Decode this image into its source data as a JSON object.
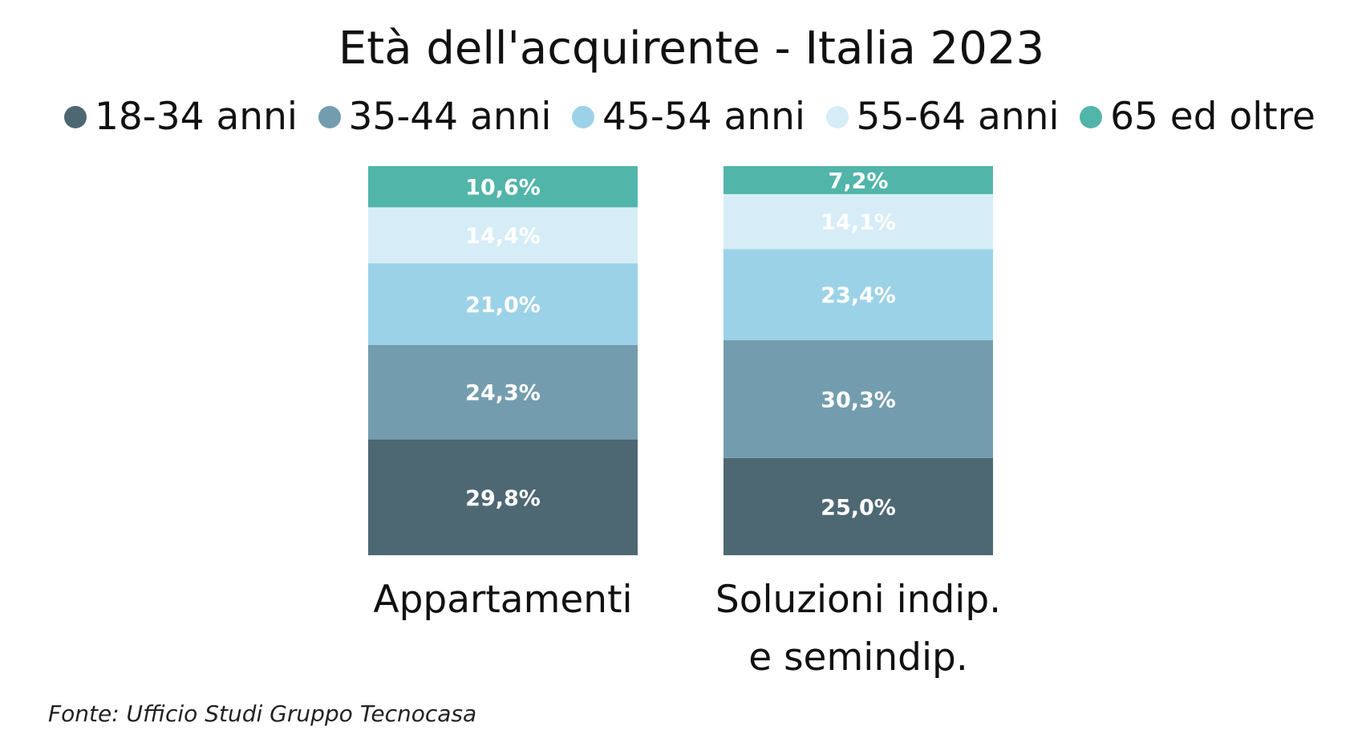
{
  "chart_data": {
    "type": "bar",
    "stacked": true,
    "title": "Età dell'acquirente - Italia 2023",
    "categories": [
      "Appartamenti",
      "Soluzioni indip. e semindip."
    ],
    "category_lines": [
      [
        "Appartamenti"
      ],
      [
        "Soluzioni indip.",
        "e semindip."
      ]
    ],
    "series": [
      {
        "name": "18-34 anni",
        "color": "#4d6873",
        "values": [
          29.8,
          25.0
        ],
        "labels": [
          "29,8%",
          "25,0%"
        ]
      },
      {
        "name": "35-44 anni",
        "color": "#739dae",
        "values": [
          24.3,
          30.3
        ],
        "labels": [
          "24,3%",
          "30,3%"
        ]
      },
      {
        "name": "45-54 anni",
        "color": "#9cd2e7",
        "values": [
          21.0,
          23.4
        ],
        "labels": [
          "21,0%",
          "23,4%"
        ]
      },
      {
        "name": "55-64 anni",
        "color": "#d6edf7",
        "values": [
          14.4,
          14.1
        ],
        "labels": [
          "14,4%",
          "14,1%"
        ]
      },
      {
        "name": "65 ed oltre",
        "color": "#52b5a9",
        "values": [
          10.6,
          7.2
        ],
        "labels": [
          "10,6%",
          "7,2%"
        ]
      }
    ],
    "ylim": [
      0,
      100
    ],
    "legend": "top",
    "grid": false,
    "source": "Fonte: Ufficio Studi Gruppo Tecnocasa"
  }
}
